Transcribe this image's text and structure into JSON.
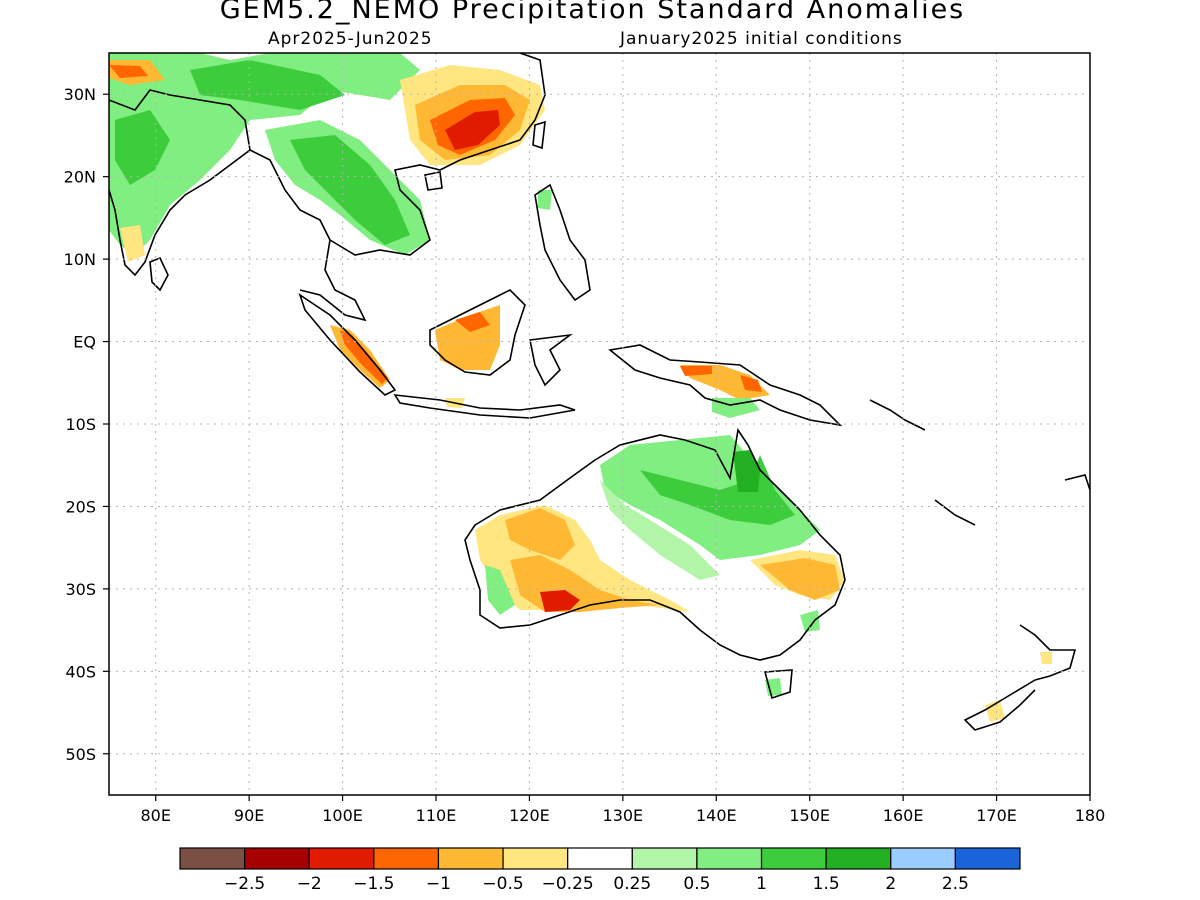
{
  "header": {
    "title": "GEM5.2_NEMO Precipitation Standard Anomalies",
    "period": "Apr2025-Jun2025",
    "init": "January2025 initial conditions"
  },
  "axes": {
    "lat_ticks": [
      "30N",
      "20N",
      "10N",
      "EQ",
      "10S",
      "20S",
      "30S",
      "40S",
      "50S"
    ],
    "lat_values": [
      30,
      20,
      10,
      0,
      -10,
      -20,
      -30,
      -40,
      -50
    ],
    "lon_ticks": [
      "80E",
      "90E",
      "100E",
      "110E",
      "120E",
      "130E",
      "140E",
      "150E",
      "160E",
      "170E",
      "180"
    ],
    "lon_values": [
      80,
      90,
      100,
      110,
      120,
      130,
      140,
      150,
      160,
      170,
      180
    ],
    "lon_range": [
      75,
      180
    ],
    "lat_range": [
      -55,
      35
    ],
    "grid": true
  },
  "colorbar": {
    "colors": [
      "#7b4f44",
      "#a60000",
      "#e01b00",
      "#ff6600",
      "#ffb833",
      "#ffe680",
      "#ffffff",
      "#b3f5a8",
      "#80ee80",
      "#3ccc3c",
      "#22b022",
      "#99ccff",
      "#1864d8"
    ],
    "labels": [
      "-2.5",
      "-2",
      "-1.5",
      "-1",
      "-0.5",
      "-0.25",
      "0.25",
      "0.5",
      "1",
      "1.5",
      "2",
      "2.5"
    ]
  },
  "chart_data": {
    "type": "heatmap",
    "title": "GEM5.2_NEMO Precipitation Standard Anomalies",
    "subtitle": "Apr2025-Jun2025",
    "x_range_deg_east": [
      75,
      180
    ],
    "y_range_deg_north": [
      -55,
      35
    ],
    "anomaly_regions": [
      {
        "region": "Southern China",
        "value": -1.5
      },
      {
        "region": "Mainland Southeast Asia",
        "value": 1
      },
      {
        "region": "India",
        "value": 0.5
      },
      {
        "region": "Borneo",
        "value": -0.5
      },
      {
        "region": "Sumatra",
        "value": -1
      },
      {
        "region": "Northern Australia",
        "value": 1
      },
      {
        "region": "Western Australia",
        "value": -0.5
      },
      {
        "region": "Southwest Australia interior",
        "value": -1
      },
      {
        "region": "Eastern Australia",
        "value": -0.5
      },
      {
        "region": "New Guinea",
        "value": -0.5
      }
    ]
  }
}
